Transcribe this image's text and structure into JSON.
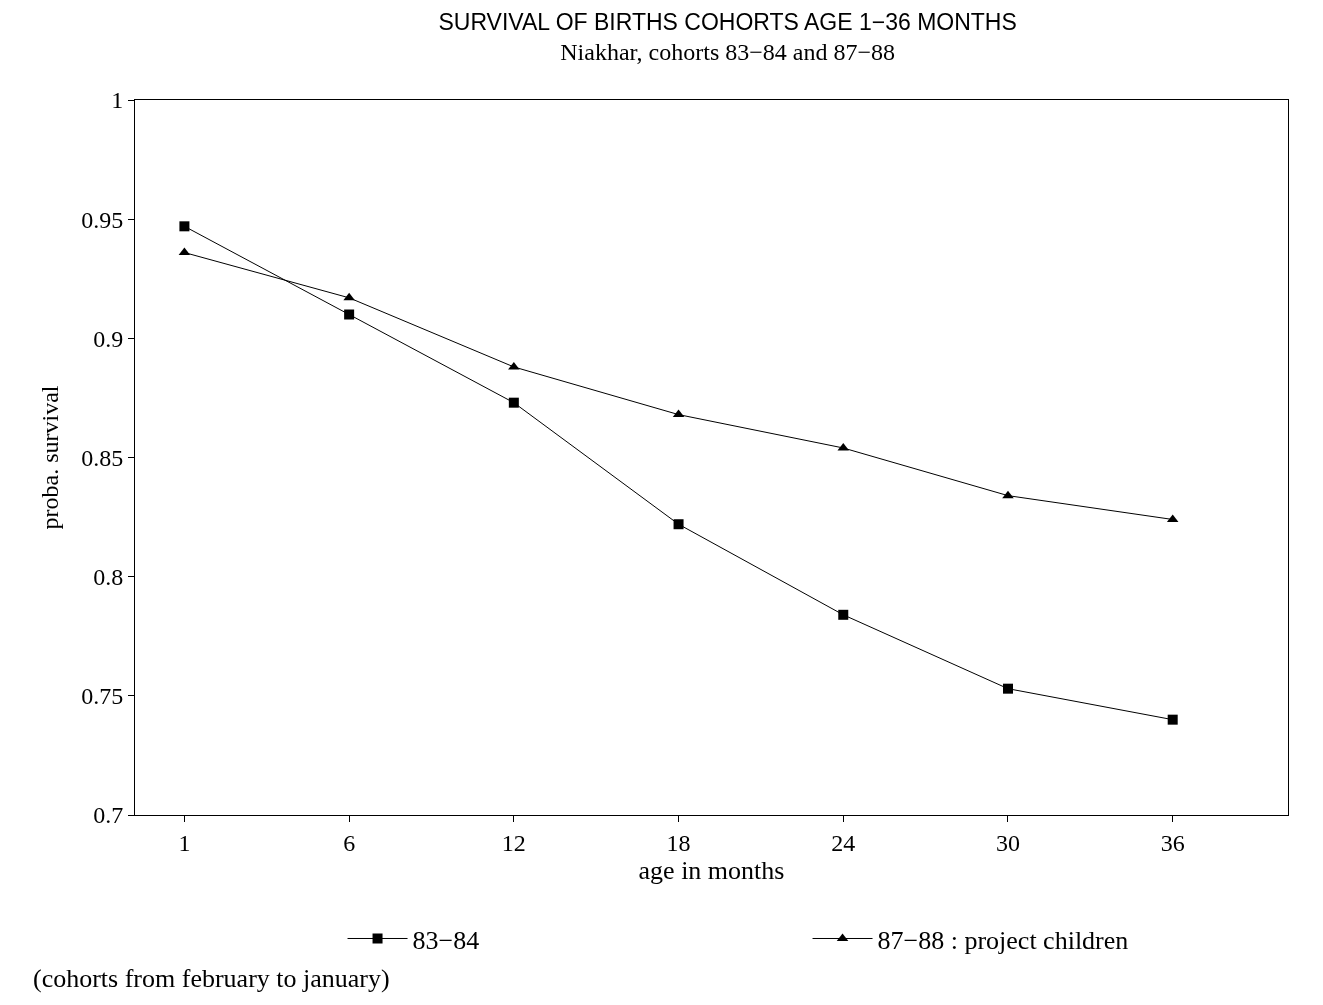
{
  "chart_data": {
    "type": "line",
    "title": "SURVIVAL OF BIRTHS COHORTS AGE 1−36 MONTHS",
    "subtitle": "Niakhar, cohorts 83−84 and 87−88",
    "xlabel": "age in months",
    "ylabel": "proba. survival",
    "categories": [
      "1",
      "6",
      "12",
      "18",
      "24",
      "30",
      "36"
    ],
    "series": [
      {
        "name": "83−84",
        "color": "#000000",
        "marker": "square",
        "values": [
          0.947,
          0.91,
          0.873,
          0.822,
          0.784,
          0.753,
          0.74
        ]
      },
      {
        "name": "87−88 : project children",
        "color": "#000000",
        "marker": "triangle",
        "values": [
          0.936,
          0.917,
          0.888,
          0.868,
          0.854,
          0.834,
          0.824
        ]
      }
    ],
    "ylim": [
      0.7,
      1
    ],
    "yticks": [
      {
        "value": 0.7,
        "label": "0.7"
      },
      {
        "value": 0.75,
        "label": "0.75"
      },
      {
        "value": 0.8,
        "label": "0.8"
      },
      {
        "value": 0.85,
        "label": "0.85"
      },
      {
        "value": 0.9,
        "label": "0.9"
      },
      {
        "value": 0.95,
        "label": "0.95"
      },
      {
        "value": 1,
        "label": "1"
      }
    ],
    "legend": "bottom",
    "line_style": "solid",
    "annotations": [
      "(cohorts from february to january)"
    ]
  }
}
